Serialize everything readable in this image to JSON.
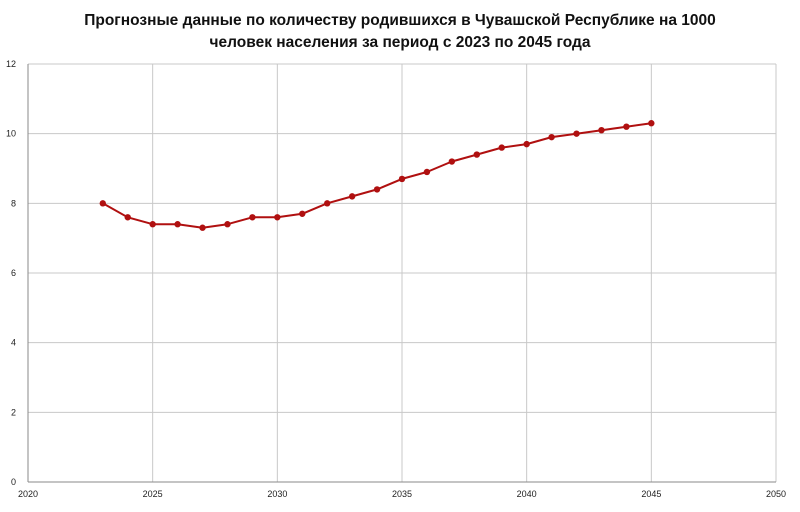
{
  "chart_data": {
    "type": "line",
    "title_lines": [
      "Прогнозные данные по количеству родившихся в Чувашской Республике на 1000",
      "человек населения за период с 2023 по 2045 года"
    ],
    "xlabel": "",
    "ylabel": "",
    "xlim": [
      2020,
      2050
    ],
    "ylim": [
      0,
      12
    ],
    "xticks": [
      2020,
      2025,
      2030,
      2035,
      2040,
      2045,
      2050
    ],
    "yticks": [
      0,
      2,
      4,
      6,
      8,
      10,
      12
    ],
    "grid": true,
    "legend": "none",
    "series": [
      {
        "color": "#b01010",
        "x": [
          2023,
          2024,
          2025,
          2026,
          2027,
          2028,
          2029,
          2030,
          2031,
          2032,
          2033,
          2034,
          2035,
          2036,
          2037,
          2038,
          2039,
          2040,
          2041,
          2042,
          2043,
          2044,
          2045
        ],
        "y": [
          8.0,
          7.6,
          7.4,
          7.4,
          7.3,
          7.4,
          7.6,
          7.6,
          7.7,
          8.0,
          8.2,
          8.4,
          8.7,
          8.9,
          9.2,
          9.4,
          9.6,
          9.7,
          9.9,
          10.0,
          10.1,
          10.2,
          10.3
        ]
      }
    ]
  }
}
